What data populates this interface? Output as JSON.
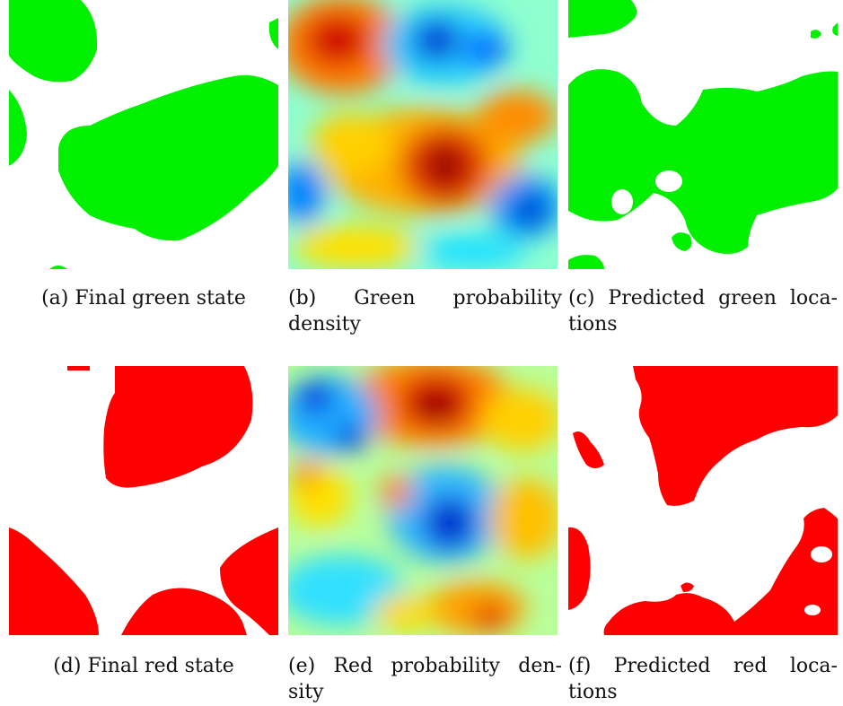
{
  "colors": {
    "green": "#00f000",
    "red": "#ff0000",
    "heat_low": "#0000c8",
    "heat_mid": "#ffff00",
    "heat_high": "#800000"
  },
  "captions": {
    "a": {
      "line1": "(a) Final green state"
    },
    "b": {
      "line1": "(b)  Green  probability",
      "line2": "density"
    },
    "c": {
      "line1": "(c) Predicted green loca-",
      "line2": "tions"
    },
    "d": {
      "line1": "(d) Final red state"
    },
    "e": {
      "line1": "(e) Red probability den-",
      "line2": "sity"
    },
    "f": {
      "line1": "(f)  Predicted  red  loca-",
      "line2": "tions"
    }
  }
}
